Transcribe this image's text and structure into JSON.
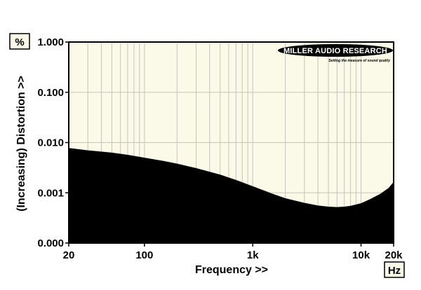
{
  "colors": {
    "plot_background": "#fbf9e8",
    "grid": "#c4c4c0",
    "fill": "#000000",
    "frame": "#000000",
    "unit_box": "#fbf9e8"
  },
  "y_unit": "%",
  "x_unit": "Hz",
  "logo": {
    "name": "MILLER AUDIO RESEARCH",
    "tagline": "Setting the measure of sound quality"
  },
  "chart_data": {
    "type": "area",
    "title": "",
    "xlabel": "Frequency >>",
    "ylabel": "(Increasing) Distortion >>",
    "x_scale": "log",
    "y_scale": "log",
    "xlim": [
      20,
      20000
    ],
    "ylim_display": [
      "0.000",
      "1.000"
    ],
    "x_ticks": [
      {
        "value": 20,
        "label": "20"
      },
      {
        "value": 100,
        "label": "100"
      },
      {
        "value": 1000,
        "label": "1k"
      },
      {
        "value": 10000,
        "label": "10k"
      },
      {
        "value": 20000,
        "label": "20k"
      }
    ],
    "y_ticks": [
      {
        "value": 1.0,
        "label": "1.000"
      },
      {
        "value": 0.1,
        "label": "0.100"
      },
      {
        "value": 0.01,
        "label": "0.010"
      },
      {
        "value": 0.001,
        "label": "0.001"
      },
      {
        "value": 0.0001,
        "label": "0.000"
      }
    ],
    "grid": true,
    "series": [
      {
        "x": [
          20,
          30,
          50,
          70,
          100,
          150,
          200,
          300,
          500,
          700,
          1000,
          1500,
          2000,
          3000,
          4000,
          5000,
          6000,
          7000,
          8000,
          10000,
          12000,
          15000,
          18000,
          20000
        ],
        "y": [
          0.0078,
          0.007,
          0.0063,
          0.0057,
          0.005,
          0.0043,
          0.0038,
          0.0031,
          0.0023,
          0.0018,
          0.00135,
          0.00097,
          0.00078,
          0.00063,
          0.00056,
          0.00053,
          0.00052,
          0.00053,
          0.00055,
          0.00062,
          0.00074,
          0.00095,
          0.00125,
          0.00165
        ]
      }
    ]
  }
}
